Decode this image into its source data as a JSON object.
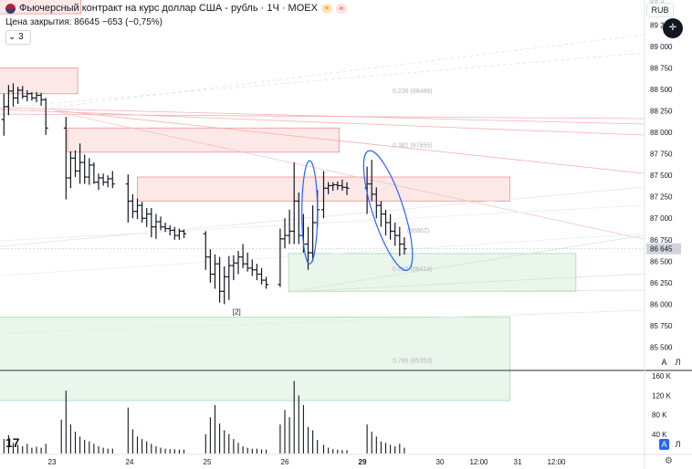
{
  "header": {
    "title": "Фьючерсный контракт на курс доллар США - рубль · 1Ч · MOEX",
    "close_line": "Цена закрытия:  86645  −653 (−0,75%)",
    "indicator_count": "3",
    "badge1": "☀",
    "badge2": "≈"
  },
  "currency": "RUB",
  "price_axis_buttons": {
    "auto": "A",
    "log": "Л"
  },
  "volume_axis_buttons": {
    "auto": "A",
    "log": "Л"
  },
  "logo": "17",
  "colors": {
    "bar": "#131722",
    "zone_red_fill": "#fde8e8",
    "zone_red_stroke": "#f4a3a3",
    "zone_green_fill": "#eaf6ec",
    "zone_green_stroke": "#b9dfc0",
    "ellipse": "#2962ff",
    "volume": "#131722",
    "fib_text": "#b2b5be",
    "current_price_bg": "#d1d4dc"
  },
  "chart_data": {
    "type": "ohlc",
    "symbol": "Si",
    "timeframe": "1Ч",
    "y_axis": {
      "labels": [
        "89 250",
        "89 000",
        "88 750",
        "88 500",
        "88 250",
        "88 000",
        "87 750",
        "87 500",
        "87 250",
        "87 000",
        "86 750",
        "86 500",
        "86 250",
        "86 000",
        "85 750",
        "85 500"
      ],
      "values": [
        89250,
        89000,
        88750,
        88500,
        88250,
        88000,
        87750,
        87500,
        87250,
        87000,
        86750,
        86500,
        86250,
        86000,
        85750,
        85500
      ],
      "partial_top_label": "89 5",
      "current_price": 86645,
      "current_price_label": "86 645",
      "ylim": [
        85240,
        89540
      ]
    },
    "x_axis": {
      "ticks": [
        {
          "label": "23",
          "day": 0.0,
          "bold": false
        },
        {
          "label": "24",
          "day": 1.0,
          "bold": false
        },
        {
          "label": "25",
          "day": 2.0,
          "bold": false
        },
        {
          "label": "26",
          "day": 3.0,
          "bold": false
        },
        {
          "label": "29",
          "day": 4.0,
          "bold": true
        },
        {
          "label": "30",
          "day": 5.0,
          "bold": false
        },
        {
          "label": "12:00",
          "day": 5.5,
          "bold": false
        },
        {
          "label": "31",
          "day": 6.0,
          "bold": false
        },
        {
          "label": "12:00",
          "day": 6.5,
          "bold": false
        }
      ]
    },
    "volume_axis": {
      "labels": [
        "160 K",
        "120 K",
        "80 K",
        "40 K"
      ],
      "values": [
        160000,
        120000,
        80000,
        40000
      ]
    },
    "bars": [
      {
        "day": -0.62,
        "o": 88150,
        "h": 88450,
        "l": 87960,
        "c": 88300
      },
      {
        "day": -0.56,
        "o": 88300,
        "h": 88550,
        "l": 88200,
        "c": 88480
      },
      {
        "day": -0.5,
        "o": 88480,
        "h": 88570,
        "l": 88300,
        "c": 88400
      },
      {
        "day": -0.44,
        "o": 88400,
        "h": 88530,
        "l": 88330,
        "c": 88490
      },
      {
        "day": -0.38,
        "o": 88490,
        "h": 88540,
        "l": 88390,
        "c": 88420
      },
      {
        "day": -0.32,
        "o": 88420,
        "h": 88490,
        "l": 88360,
        "c": 88450
      },
      {
        "day": -0.26,
        "o": 88450,
        "h": 88470,
        "l": 88370,
        "c": 88400
      },
      {
        "day": -0.2,
        "o": 88400,
        "h": 88470,
        "l": 88350,
        "c": 88430
      },
      {
        "day": -0.14,
        "o": 88430,
        "h": 88460,
        "l": 88310,
        "c": 88380
      },
      {
        "day": -0.08,
        "o": 88380,
        "h": 88400,
        "l": 87970,
        "c": 88050
      },
      {
        "day": 0.18,
        "o": 88050,
        "h": 88180,
        "l": 87220,
        "c": 87470
      },
      {
        "day": 0.24,
        "o": 87470,
        "h": 87780,
        "l": 87350,
        "c": 87700
      },
      {
        "day": 0.3,
        "o": 87700,
        "h": 87790,
        "l": 87480,
        "c": 87550
      },
      {
        "day": 0.36,
        "o": 87550,
        "h": 87870,
        "l": 87400,
        "c": 87650
      },
      {
        "day": 0.42,
        "o": 87650,
        "h": 87740,
        "l": 87400,
        "c": 87480
      },
      {
        "day": 0.48,
        "o": 87480,
        "h": 87700,
        "l": 87390,
        "c": 87620
      },
      {
        "day": 0.54,
        "o": 87620,
        "h": 87650,
        "l": 87400,
        "c": 87420
      },
      {
        "day": 0.6,
        "o": 87420,
        "h": 87520,
        "l": 87330,
        "c": 87470
      },
      {
        "day": 0.66,
        "o": 87470,
        "h": 87520,
        "l": 87380,
        "c": 87420
      },
      {
        "day": 0.72,
        "o": 87420,
        "h": 87500,
        "l": 87360,
        "c": 87460
      },
      {
        "day": 0.78,
        "o": 87460,
        "h": 87550,
        "l": 87350,
        "c": 87400
      },
      {
        "day": 0.98,
        "o": 87400,
        "h": 87510,
        "l": 86950,
        "c": 87200
      },
      {
        "day": 1.04,
        "o": 87200,
        "h": 87280,
        "l": 87000,
        "c": 87080
      },
      {
        "day": 1.1,
        "o": 87080,
        "h": 87230,
        "l": 86990,
        "c": 87150
      },
      {
        "day": 1.16,
        "o": 87150,
        "h": 87190,
        "l": 86950,
        "c": 87000
      },
      {
        "day": 1.22,
        "o": 87000,
        "h": 87120,
        "l": 86900,
        "c": 87050
      },
      {
        "day": 1.28,
        "o": 87050,
        "h": 87120,
        "l": 86780,
        "c": 86900
      },
      {
        "day": 1.34,
        "o": 86900,
        "h": 87050,
        "l": 86760,
        "c": 86960
      },
      {
        "day": 1.4,
        "o": 86960,
        "h": 87020,
        "l": 86860,
        "c": 86900
      },
      {
        "day": 1.46,
        "o": 86900,
        "h": 86950,
        "l": 86840,
        "c": 86880
      },
      {
        "day": 1.52,
        "o": 86880,
        "h": 86920,
        "l": 86800,
        "c": 86860
      },
      {
        "day": 1.58,
        "o": 86860,
        "h": 86900,
        "l": 86750,
        "c": 86800
      },
      {
        "day": 1.64,
        "o": 86800,
        "h": 86880,
        "l": 86750,
        "c": 86850
      },
      {
        "day": 1.7,
        "o": 86850,
        "h": 86870,
        "l": 86770,
        "c": 86820
      },
      {
        "day": 1.98,
        "o": 86820,
        "h": 86850,
        "l": 86400,
        "c": 86550
      },
      {
        "day": 2.04,
        "o": 86550,
        "h": 86640,
        "l": 86250,
        "c": 86350
      },
      {
        "day": 2.1,
        "o": 86350,
        "h": 86580,
        "l": 86180,
        "c": 86470
      },
      {
        "day": 2.16,
        "o": 86470,
        "h": 86550,
        "l": 86020,
        "c": 86150
      },
      {
        "day": 2.22,
        "o": 86150,
        "h": 86440,
        "l": 86000,
        "c": 86320
      },
      {
        "day": 2.28,
        "o": 86320,
        "h": 86560,
        "l": 86050,
        "c": 86450
      },
      {
        "day": 2.34,
        "o": 86450,
        "h": 86570,
        "l": 86280,
        "c": 86480
      },
      {
        "day": 2.4,
        "o": 86480,
        "h": 86620,
        "l": 86350,
        "c": 86550
      },
      {
        "day": 2.46,
        "o": 86550,
        "h": 86700,
        "l": 86420,
        "c": 86470
      },
      {
        "day": 2.52,
        "o": 86470,
        "h": 86600,
        "l": 86380,
        "c": 86420
      },
      {
        "day": 2.58,
        "o": 86420,
        "h": 86520,
        "l": 86330,
        "c": 86400
      },
      {
        "day": 2.64,
        "o": 86400,
        "h": 86470,
        "l": 86280,
        "c": 86350
      },
      {
        "day": 2.7,
        "o": 86350,
        "h": 86420,
        "l": 86230,
        "c": 86280
      },
      {
        "day": 2.76,
        "o": 86280,
        "h": 86320,
        "l": 86180,
        "c": 86230
      },
      {
        "day": 2.94,
        "o": 86230,
        "h": 86880,
        "l": 86200,
        "c": 86760
      },
      {
        "day": 3.0,
        "o": 86760,
        "h": 87000,
        "l": 86650,
        "c": 86800
      },
      {
        "day": 3.06,
        "o": 86800,
        "h": 87100,
        "l": 86700,
        "c": 86850
      },
      {
        "day": 3.12,
        "o": 86850,
        "h": 87650,
        "l": 86700,
        "c": 87200
      },
      {
        "day": 3.18,
        "o": 87200,
        "h": 87300,
        "l": 86700,
        "c": 86800
      },
      {
        "day": 3.24,
        "o": 86800,
        "h": 87050,
        "l": 86600,
        "c": 86700
      },
      {
        "day": 3.3,
        "o": 86700,
        "h": 86900,
        "l": 86400,
        "c": 86600
      },
      {
        "day": 3.36,
        "o": 86600,
        "h": 87150,
        "l": 86500,
        "c": 86950
      },
      {
        "day": 3.42,
        "o": 86950,
        "h": 87330,
        "l": 86900,
        "c": 87100
      },
      {
        "day": 3.5,
        "o": 87100,
        "h": 87550,
        "l": 87000,
        "c": 87350
      },
      {
        "day": 3.56,
        "o": 87350,
        "h": 87420,
        "l": 87280,
        "c": 87380
      },
      {
        "day": 3.62,
        "o": 87380,
        "h": 87420,
        "l": 87320,
        "c": 87390
      },
      {
        "day": 3.68,
        "o": 87390,
        "h": 87430,
        "l": 87330,
        "c": 87380
      },
      {
        "day": 3.74,
        "o": 87380,
        "h": 87450,
        "l": 87320,
        "c": 87360
      },
      {
        "day": 3.8,
        "o": 87360,
        "h": 87420,
        "l": 87270,
        "c": 87350
      },
      {
        "day": 4.06,
        "o": 87350,
        "h": 87600,
        "l": 87050,
        "c": 87400
      },
      {
        "day": 4.12,
        "o": 87400,
        "h": 87680,
        "l": 87200,
        "c": 87280
      },
      {
        "day": 4.18,
        "o": 87280,
        "h": 87360,
        "l": 87000,
        "c": 87150
      },
      {
        "day": 4.24,
        "o": 87150,
        "h": 87200,
        "l": 86900,
        "c": 87050
      },
      {
        "day": 4.3,
        "o": 87050,
        "h": 87100,
        "l": 86800,
        "c": 86950
      },
      {
        "day": 4.36,
        "o": 86950,
        "h": 87050,
        "l": 86750,
        "c": 86850
      },
      {
        "day": 4.42,
        "o": 86850,
        "h": 86950,
        "l": 86680,
        "c": 86800
      },
      {
        "day": 4.48,
        "o": 86800,
        "h": 86900,
        "l": 86560,
        "c": 86700
      },
      {
        "day": 4.54,
        "o": 86700,
        "h": 86780,
        "l": 86580,
        "c": 86645
      }
    ],
    "volume": [
      {
        "day": -0.62,
        "v": 30000
      },
      {
        "day": -0.56,
        "v": 38000
      },
      {
        "day": -0.5,
        "v": 22000
      },
      {
        "day": -0.44,
        "v": 18000
      },
      {
        "day": -0.38,
        "v": 15000
      },
      {
        "day": -0.32,
        "v": 20000
      },
      {
        "day": -0.26,
        "v": 12000
      },
      {
        "day": -0.2,
        "v": 14000
      },
      {
        "day": -0.14,
        "v": 12000
      },
      {
        "day": -0.08,
        "v": 20000
      },
      {
        "day": 0.12,
        "v": 70000
      },
      {
        "day": 0.18,
        "v": 130000
      },
      {
        "day": 0.24,
        "v": 60000
      },
      {
        "day": 0.3,
        "v": 45000
      },
      {
        "day": 0.36,
        "v": 35000
      },
      {
        "day": 0.42,
        "v": 28000
      },
      {
        "day": 0.48,
        "v": 25000
      },
      {
        "day": 0.54,
        "v": 20000
      },
      {
        "day": 0.6,
        "v": 15000
      },
      {
        "day": 0.66,
        "v": 12000
      },
      {
        "day": 0.72,
        "v": 10000
      },
      {
        "day": 0.78,
        "v": 10000
      },
      {
        "day": 0.98,
        "v": 95000
      },
      {
        "day": 1.04,
        "v": 50000
      },
      {
        "day": 1.1,
        "v": 35000
      },
      {
        "day": 1.16,
        "v": 30000
      },
      {
        "day": 1.22,
        "v": 25000
      },
      {
        "day": 1.28,
        "v": 20000
      },
      {
        "day": 1.34,
        "v": 15000
      },
      {
        "day": 1.4,
        "v": 12000
      },
      {
        "day": 1.46,
        "v": 10000
      },
      {
        "day": 1.52,
        "v": 9000
      },
      {
        "day": 1.58,
        "v": 9000
      },
      {
        "day": 1.64,
        "v": 8000
      },
      {
        "day": 1.7,
        "v": 8000
      },
      {
        "day": 1.98,
        "v": 40000
      },
      {
        "day": 2.04,
        "v": 75000
      },
      {
        "day": 2.1,
        "v": 100000
      },
      {
        "day": 2.16,
        "v": 62000
      },
      {
        "day": 2.22,
        "v": 48000
      },
      {
        "day": 2.28,
        "v": 40000
      },
      {
        "day": 2.34,
        "v": 30000
      },
      {
        "day": 2.4,
        "v": 22000
      },
      {
        "day": 2.46,
        "v": 15000
      },
      {
        "day": 2.52,
        "v": 12000
      },
      {
        "day": 2.58,
        "v": 10000
      },
      {
        "day": 2.64,
        "v": 10000
      },
      {
        "day": 2.7,
        "v": 8000
      },
      {
        "day": 2.76,
        "v": 8000
      },
      {
        "day": 2.94,
        "v": 60000
      },
      {
        "day": 3.0,
        "v": 90000
      },
      {
        "day": 3.06,
        "v": 75000
      },
      {
        "day": 3.12,
        "v": 150000
      },
      {
        "day": 3.18,
        "v": 120000
      },
      {
        "day": 3.24,
        "v": 100000
      },
      {
        "day": 3.3,
        "v": 55000
      },
      {
        "day": 3.36,
        "v": 48000
      },
      {
        "day": 3.42,
        "v": 28000
      },
      {
        "day": 3.5,
        "v": 18000
      },
      {
        "day": 3.56,
        "v": 12000
      },
      {
        "day": 3.62,
        "v": 9000
      },
      {
        "day": 3.68,
        "v": 8000
      },
      {
        "day": 3.74,
        "v": 7000
      },
      {
        "day": 3.8,
        "v": 7000
      },
      {
        "day": 4.06,
        "v": 60000
      },
      {
        "day": 4.12,
        "v": 45000
      },
      {
        "day": 4.18,
        "v": 35000
      },
      {
        "day": 4.24,
        "v": 25000
      },
      {
        "day": 4.3,
        "v": 22000
      },
      {
        "day": 4.36,
        "v": 18000
      },
      {
        "day": 4.42,
        "v": 15000
      },
      {
        "day": 4.48,
        "v": 20000
      },
      {
        "day": 4.54,
        "v": 12000
      }
    ],
    "zones": [
      {
        "kind": "supply",
        "day_from": -0.8,
        "day_to": 0.33,
        "price_high": 88750,
        "price_low": 88450
      },
      {
        "kind": "supply",
        "day_from": 0.2,
        "day_to": 3.7,
        "price_high": 88050,
        "price_low": 87770
      },
      {
        "kind": "supply",
        "day_from": 1.1,
        "day_to": 5.9,
        "price_high": 87480,
        "price_low": 87200
      },
      {
        "kind": "demand",
        "day_from": 3.05,
        "day_to": 6.75,
        "price_high": 86590,
        "price_low": 86150
      },
      {
        "kind": "demand",
        "day_from": -0.8,
        "day_to": 5.9,
        "price_high": 85850,
        "price_low": 84880
      },
      {
        "kind": "small_supply",
        "day_from": -0.8,
        "day_to": 0.37,
        "price_high": 89560,
        "price_low": 89380
      }
    ],
    "fib_levels": [
      {
        "label": "0.236 (88488)",
        "price": 88488
      },
      {
        "label": "0.382 (87855)",
        "price": 87855
      },
      {
        "label": "(86862)",
        "price": 86862
      },
      {
        "label": "0.618 (86418)",
        "price": 86418
      },
      {
        "label": "0.786 (85353)",
        "price": 85353
      }
    ],
    "ellipses": [
      {
        "day": 3.32,
        "price": 87070,
        "rx_days": 0.1,
        "ry_price": 600,
        "rot": 0
      },
      {
        "day": 4.33,
        "price": 87090,
        "rx_days": 0.2,
        "ry_price": 730,
        "rot": -18
      }
    ],
    "pivot_label": {
      "text": "[2]",
      "day": 2.38,
      "price": 85880
    }
  }
}
